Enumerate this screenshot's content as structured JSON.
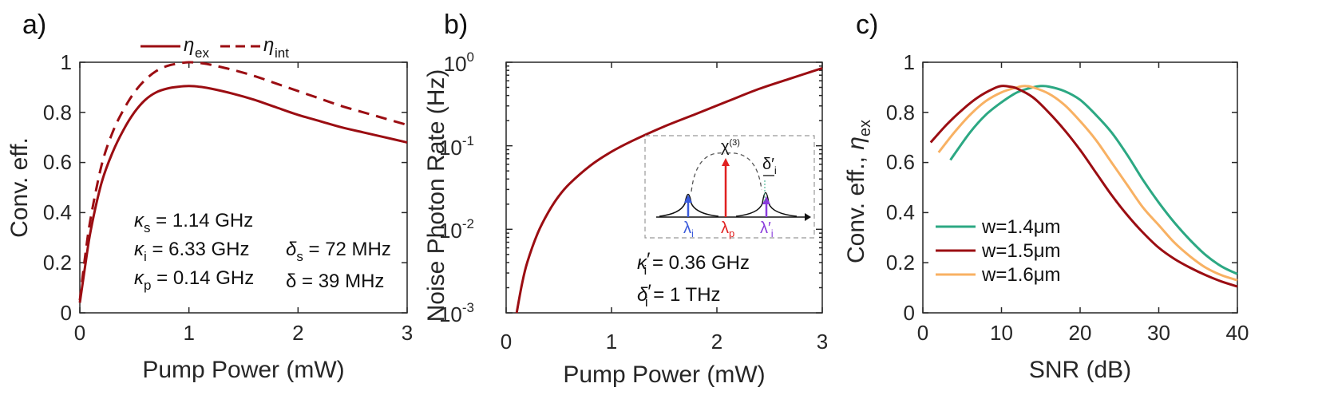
{
  "colors": {
    "dark_red": "#9b0d12",
    "green": "#2ca883",
    "orange": "#f8b163",
    "axis": "#262626",
    "inset_blue": "#3b5bdb",
    "inset_red": "#e02020",
    "inset_purple": "#8a3cdc"
  },
  "panels": {
    "a": {
      "label": "a)",
      "xlabel": "Pump Power (mW)",
      "ylabel": "Conv. eff.",
      "xticks": [
        "0",
        "1",
        "2",
        "3"
      ],
      "yticks": [
        "0",
        "0.2",
        "0.4",
        "0.6",
        "0.8",
        "1"
      ],
      "legend": {
        "ex_base": "η",
        "ex_sub": "ex",
        "int_base": "η",
        "int_sub": "int"
      },
      "annotations": {
        "kappa_s": {
          "sym": "κ",
          "sub": "s",
          "val": " = 1.14 GHz"
        },
        "kappa_i": {
          "sym": "κ",
          "sub": "i",
          "val": " = 6.33 GHz"
        },
        "kappa_p": {
          "sym": "κ",
          "sub": "p",
          "val": " = 0.14 GHz"
        },
        "delta_s": {
          "sym": "δ",
          "sub": "s",
          "val": " = 72 MHz"
        },
        "delta": {
          "text": "δ = 39 MHz"
        }
      }
    },
    "b": {
      "label": "b)",
      "xlabel": "Pump Power (mW)",
      "ylabel": "Noise Photon Rate (Hz)",
      "xticks": [
        "0",
        "1",
        "2",
        "3"
      ],
      "yticks": [
        {
          "base": "10",
          "exp": "-3"
        },
        {
          "base": "10",
          "exp": "-2"
        },
        {
          "base": "10",
          "exp": "-1"
        },
        {
          "base": "10",
          "exp": "0"
        }
      ],
      "annotations": {
        "kappa_i_prime": {
          "sym": "κ",
          "sub": "i",
          "prime": "′",
          "val": " = 0.36 GHz"
        },
        "delta_i_prime": {
          "sym": "δ",
          "sub": "i",
          "prime": "′",
          "val": " = 1 THz"
        }
      },
      "inset": {
        "chi": "χ",
        "chi_exp": "(3)",
        "delta_label": "δ′",
        "delta_sub": "i",
        "lambda_i": "λ",
        "lambda_i_sub": "i",
        "lambda_p": "λ",
        "lambda_p_sub": "p",
        "lambda_ip": "λ′",
        "lambda_ip_sub": "i"
      }
    },
    "c": {
      "label": "c)",
      "xlabel": "SNR (dB)",
      "ylabel_main": "Conv. eff., ",
      "ylabel_sym": "η",
      "ylabel_sub": "ex",
      "xticks": [
        "0",
        "10",
        "20",
        "30",
        "40"
      ],
      "yticks": [
        "0",
        "0.2",
        "0.4",
        "0.6",
        "0.8",
        "1"
      ],
      "legend": [
        "w=1.4μm",
        "w=1.5μm",
        "w=1.6μm"
      ]
    }
  },
  "chart_data": [
    {
      "type": "line",
      "panel": "a",
      "xlim": [
        0,
        3
      ],
      "ylim": [
        0,
        1
      ],
      "series": [
        {
          "name": "η_ex",
          "style": "solid",
          "x": [
            0,
            0.05,
            0.1,
            0.2,
            0.3,
            0.4,
            0.5,
            0.6,
            0.7,
            0.8,
            0.9,
            1.0,
            1.1,
            1.2,
            1.4,
            1.6,
            1.8,
            2.0,
            2.2,
            2.4,
            2.6,
            2.8,
            3.0
          ],
          "y": [
            0.04,
            0.19,
            0.33,
            0.52,
            0.64,
            0.73,
            0.8,
            0.85,
            0.88,
            0.895,
            0.902,
            0.905,
            0.902,
            0.895,
            0.875,
            0.85,
            0.82,
            0.79,
            0.765,
            0.74,
            0.72,
            0.7,
            0.68
          ]
        },
        {
          "name": "η_int",
          "style": "dashed",
          "x": [
            0,
            0.05,
            0.1,
            0.2,
            0.3,
            0.4,
            0.5,
            0.6,
            0.7,
            0.8,
            0.9,
            1.0,
            1.1,
            1.2,
            1.4,
            1.6,
            1.8,
            2.0,
            2.2,
            2.4,
            2.6,
            2.8,
            3.0
          ],
          "y": [
            0.05,
            0.23,
            0.38,
            0.59,
            0.72,
            0.81,
            0.88,
            0.93,
            0.965,
            0.985,
            0.995,
            1.0,
            0.997,
            0.99,
            0.97,
            0.945,
            0.915,
            0.885,
            0.855,
            0.825,
            0.8,
            0.775,
            0.75
          ]
        }
      ]
    },
    {
      "type": "line",
      "panel": "b",
      "yscale": "log",
      "xlim": [
        0,
        3
      ],
      "ylim": [
        0.001,
        1
      ],
      "series": [
        {
          "name": "noise photon rate",
          "x": [
            0.1,
            0.15,
            0.2,
            0.3,
            0.4,
            0.5,
            0.6,
            0.8,
            1.0,
            1.2,
            1.5,
            1.8,
            2.1,
            2.4,
            2.7,
            3.0
          ],
          "y": [
            0.001,
            0.0022,
            0.004,
            0.009,
            0.016,
            0.025,
            0.035,
            0.058,
            0.085,
            0.115,
            0.17,
            0.24,
            0.34,
            0.48,
            0.64,
            0.85
          ]
        }
      ]
    },
    {
      "type": "line",
      "panel": "c",
      "xlim": [
        0,
        40
      ],
      "ylim": [
        0,
        1
      ],
      "series": [
        {
          "name": "w=1.4μm",
          "x": [
            3.5,
            6,
            8,
            10,
            12,
            14,
            15,
            16,
            18,
            20,
            22,
            24,
            26,
            28,
            30,
            32,
            34,
            36,
            38,
            40
          ],
          "y": [
            0.61,
            0.72,
            0.79,
            0.84,
            0.88,
            0.9,
            0.905,
            0.903,
            0.885,
            0.85,
            0.79,
            0.72,
            0.63,
            0.53,
            0.44,
            0.36,
            0.29,
            0.23,
            0.185,
            0.155
          ]
        },
        {
          "name": "w=1.5μm",
          "x": [
            1,
            3,
            5,
            7,
            9,
            10,
            11,
            12,
            14,
            16,
            18,
            20,
            22,
            24,
            26,
            28,
            30,
            32,
            34,
            36,
            38,
            40
          ],
          "y": [
            0.68,
            0.75,
            0.81,
            0.86,
            0.895,
            0.905,
            0.903,
            0.895,
            0.86,
            0.8,
            0.73,
            0.65,
            0.56,
            0.47,
            0.39,
            0.32,
            0.26,
            0.215,
            0.18,
            0.15,
            0.125,
            0.105
          ]
        },
        {
          "name": "w=1.6μm",
          "x": [
            2,
            4,
            6,
            8,
            10,
            12,
            13,
            14,
            16,
            18,
            20,
            22,
            24,
            26,
            28,
            30,
            32,
            34,
            36,
            38,
            40
          ],
          "y": [
            0.64,
            0.72,
            0.79,
            0.845,
            0.88,
            0.9,
            0.905,
            0.9,
            0.875,
            0.83,
            0.765,
            0.69,
            0.6,
            0.51,
            0.42,
            0.35,
            0.28,
            0.225,
            0.18,
            0.15,
            0.13
          ]
        }
      ]
    }
  ]
}
